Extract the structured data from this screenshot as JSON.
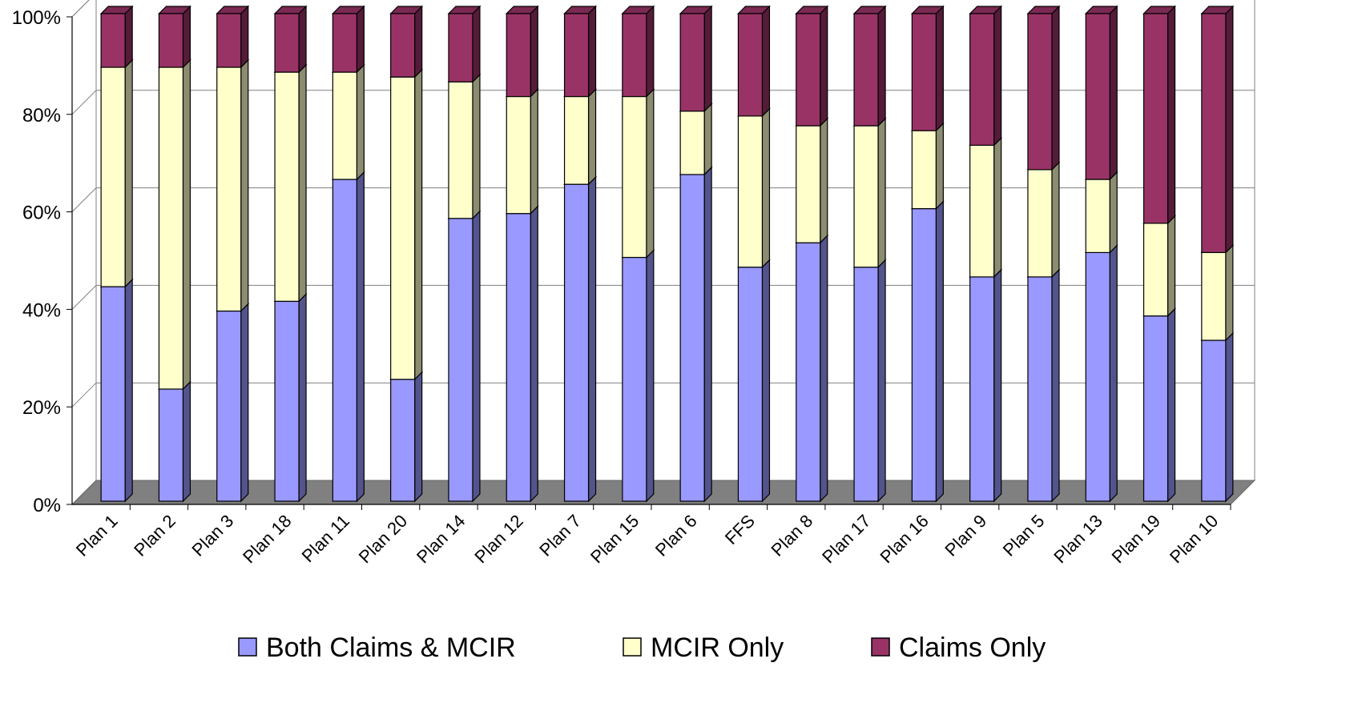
{
  "chart_data": {
    "type": "bar",
    "stacked": "percent",
    "three_d": true,
    "grid": true,
    "legend_position": "bottom",
    "categories": [
      "Plan 1",
      "Plan 2",
      "Plan 3",
      "Plan 18",
      "Plan 11",
      "Plan 20",
      "Plan 14",
      "Plan 12",
      "Plan 7",
      "Plan 15",
      "Plan 6",
      "FFS",
      "Plan 8",
      "Plan 17",
      "Plan 16",
      "Plan 9",
      "Plan 5",
      "Plan 13",
      "Plan 19",
      "Plan 10"
    ],
    "series": [
      {
        "name": "Both Claims & MCIR",
        "color": "#9999ff",
        "values": [
          44,
          23,
          39,
          41,
          66,
          25,
          58,
          59,
          65,
          50,
          67,
          48,
          53,
          48,
          60,
          46,
          46,
          51,
          38,
          33
        ]
      },
      {
        "name": "MCIR Only",
        "color": "#ffffcc",
        "values": [
          45,
          66,
          50,
          47,
          22,
          62,
          28,
          24,
          18,
          33,
          13,
          31,
          24,
          29,
          16,
          27,
          22,
          15,
          19,
          18
        ]
      },
      {
        "name": "Claims Only",
        "color": "#993366",
        "values": [
          11,
          11,
          11,
          12,
          12,
          13,
          14,
          17,
          17,
          17,
          20,
          21,
          23,
          23,
          24,
          27,
          32,
          34,
          43,
          49
        ]
      }
    ],
    "y_ticks": [
      "0%",
      "20%",
      "40%",
      "60%",
      "80%",
      "100%"
    ],
    "ylim": [
      0,
      100
    ]
  }
}
